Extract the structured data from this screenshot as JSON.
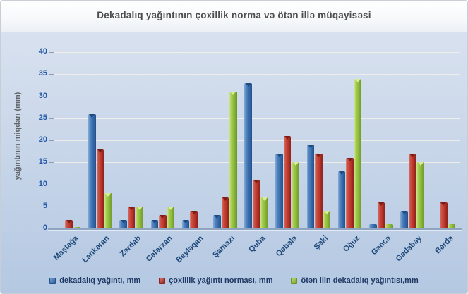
{
  "title": "Dekadalıq yağıntının çoxillik norma  və ötən illə müqayisəsi",
  "ylabel": "yağıntının miqdarı (mm)",
  "chart_data": {
    "type": "bar",
    "categories": [
      "Maştağa",
      "Lənkəran",
      "Zərdab",
      "Cəfərxan",
      "Beyləqan",
      "Şamaxı",
      "Quba",
      "Qəbələ",
      "Şəki",
      "Oğuz",
      "Gəncə",
      "Gədəbəy",
      "Bərdə"
    ],
    "series": [
      {
        "name": "dekadalıq yağıntı, mm",
        "color": "#3B6FB0",
        "values": [
          0,
          26,
          2,
          2,
          2,
          3,
          33,
          17,
          19,
          13,
          1,
          4,
          0
        ]
      },
      {
        "name": "çoxillik yağıntı norması, mm",
        "color": "#C03A2E",
        "values": [
          2,
          18,
          5,
          3,
          4,
          7,
          11,
          21,
          17,
          16,
          6,
          17,
          6
        ]
      },
      {
        "name": "ötən ilin dekadalıq yağıntısı,mm",
        "color": "#8FBC3C",
        "values": [
          0.4,
          8,
          5,
          5,
          0,
          31,
          7,
          15,
          4,
          34,
          1,
          15,
          1
        ]
      }
    ],
    "title": "Dekadalıq yağıntının çoxillik norma  və ötən illə müqayisəsi",
    "xlabel": "",
    "ylabel": "yağıntının miqdarı (mm)",
    "ylim": [
      0,
      40
    ],
    "yticks": [
      0,
      5,
      10,
      15,
      20,
      25,
      30,
      35,
      40
    ],
    "grid": true,
    "legend_position": "bottom"
  }
}
